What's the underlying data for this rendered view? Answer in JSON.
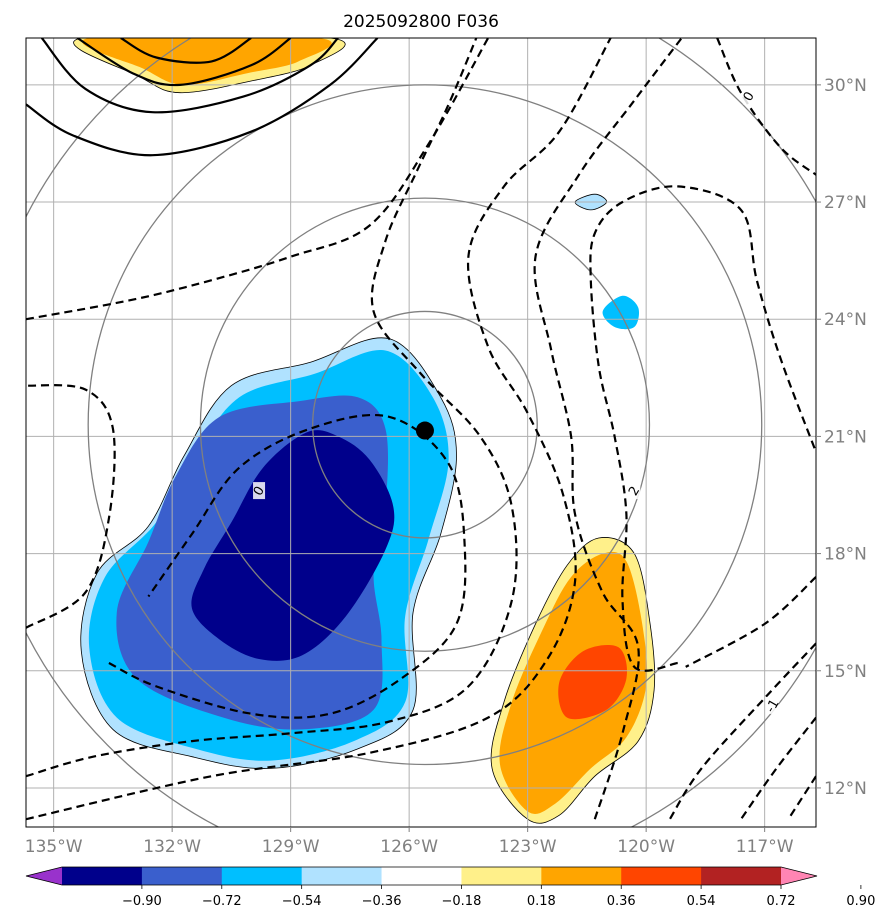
{
  "chart_data": {
    "type": "contour-map",
    "title": "2025092800 F036",
    "lon_range": [
      -135.7,
      -115.7
    ],
    "lat_range": [
      11.0,
      31.2
    ],
    "grid": true,
    "x_ticks": [
      {
        "value": -135,
        "label": "135°W"
      },
      {
        "value": -132,
        "label": "132°W"
      },
      {
        "value": -129,
        "label": "129°W"
      },
      {
        "value": -126,
        "label": "126°W"
      },
      {
        "value": -123,
        "label": "123°W"
      },
      {
        "value": -120,
        "label": "120°W"
      },
      {
        "value": -117,
        "label": "117°W"
      }
    ],
    "y_ticks": [
      {
        "value": 30,
        "label": "30°N"
      },
      {
        "value": 27,
        "label": "27°N"
      },
      {
        "value": 24,
        "label": "24°N"
      },
      {
        "value": 21,
        "label": "21°N"
      },
      {
        "value": 18,
        "label": "18°N"
      },
      {
        "value": 15,
        "label": "15°N"
      },
      {
        "value": 12,
        "label": "12°N"
      }
    ],
    "center_marker": {
      "lon": -125.6,
      "lat": 21.15
    },
    "range_rings": {
      "center_lon": -125.6,
      "center_lat": 21.3,
      "radii_deg": [
        2.9,
        5.8,
        8.7,
        11.6
      ]
    },
    "colorbar": {
      "ticks": [
        "−0.90",
        "−0.72",
        "−0.54",
        "−0.36",
        "−0.18",
        "0.18",
        "0.36",
        "0.54",
        "0.72",
        "0.90"
      ],
      "colors": [
        "#9932cc",
        "#00008b",
        "#3a5fcd",
        "#00bfff",
        "#b0e2ff",
        "#ffffff",
        "#fff08a",
        "#ffa500",
        "#ff4500",
        "#b22222",
        "#ff85b3"
      ],
      "extend": "both"
    },
    "filled_regions": [
      {
        "name": "west-low",
        "level_color": "#b0e2ff",
        "points": [
          [
            -133.5,
            13.5
          ],
          [
            -134.3,
            15.5
          ],
          [
            -133.9,
            17.5
          ],
          [
            -132.6,
            18.7
          ],
          [
            -131.7,
            20.5
          ],
          [
            -130.5,
            22.3
          ],
          [
            -128.5,
            22.9
          ],
          [
            -126.5,
            23.5
          ],
          [
            -125.2,
            22.0
          ],
          [
            -124.8,
            20.5
          ],
          [
            -125.2,
            18.5
          ],
          [
            -125.9,
            16.5
          ],
          [
            -125.9,
            14.0
          ],
          [
            -127.3,
            13.0
          ],
          [
            -129.5,
            12.5
          ],
          [
            -131.5,
            12.8
          ]
        ]
      },
      {
        "name": "west-low",
        "level_color": "#00bfff",
        "points": [
          [
            -133.4,
            13.8
          ],
          [
            -134.1,
            15.6
          ],
          [
            -133.7,
            17.4
          ],
          [
            -132.4,
            18.8
          ],
          [
            -131.5,
            20.4
          ],
          [
            -130.3,
            22.0
          ],
          [
            -128.4,
            22.6
          ],
          [
            -126.6,
            23.2
          ],
          [
            -125.4,
            22.0
          ],
          [
            -125.0,
            20.4
          ],
          [
            -125.5,
            18.4
          ],
          [
            -126.1,
            16.4
          ],
          [
            -126.1,
            14.2
          ],
          [
            -127.4,
            13.2
          ],
          [
            -129.5,
            12.7
          ],
          [
            -131.4,
            13.0
          ]
        ]
      },
      {
        "name": "west-low",
        "level_color": "#3a5fcd",
        "points": [
          [
            -132.9,
            14.8
          ],
          [
            -133.4,
            16.5
          ],
          [
            -132.6,
            18.3
          ],
          [
            -131.9,
            20.0
          ],
          [
            -130.8,
            21.5
          ],
          [
            -128.8,
            21.9
          ],
          [
            -127.3,
            22.0
          ],
          [
            -126.6,
            21.2
          ],
          [
            -126.6,
            19.2
          ],
          [
            -126.9,
            17.5
          ],
          [
            -126.7,
            15.8
          ],
          [
            -126.9,
            14.0
          ],
          [
            -128.7,
            13.5
          ],
          [
            -130.7,
            13.8
          ]
        ]
      },
      {
        "name": "west-low",
        "level_color": "#00008b",
        "points": [
          [
            -131.5,
            16.6
          ],
          [
            -131.2,
            17.6
          ],
          [
            -130.5,
            18.8
          ],
          [
            -129.7,
            20.2
          ],
          [
            -128.6,
            21.1
          ],
          [
            -127.8,
            21.0
          ],
          [
            -127.0,
            20.4
          ],
          [
            -126.4,
            19.2
          ],
          [
            -126.6,
            18.1
          ],
          [
            -127.6,
            16.4
          ],
          [
            -128.7,
            15.4
          ],
          [
            -129.8,
            15.3
          ],
          [
            -130.8,
            15.8
          ]
        ]
      },
      {
        "name": "northwest-high",
        "level_color": "#fff08a",
        "points": [
          [
            -134.3,
            31.2
          ],
          [
            -132.8,
            30.2
          ],
          [
            -131.8,
            29.8
          ],
          [
            -130.0,
            30.1
          ],
          [
            -128.5,
            30.5
          ],
          [
            -128.0,
            31.2
          ]
        ]
      },
      {
        "name": "northwest-high",
        "level_color": "#ffa500",
        "points": [
          [
            -134.1,
            31.2
          ],
          [
            -132.7,
            30.4
          ],
          [
            -131.7,
            30.0
          ],
          [
            -130.1,
            30.3
          ],
          [
            -128.8,
            30.6
          ],
          [
            -128.3,
            31.2
          ]
        ]
      },
      {
        "name": "southeast-high",
        "level_color": "#fff08a",
        "points": [
          [
            -123.0,
            11.2
          ],
          [
            -123.9,
            12.5
          ],
          [
            -123.6,
            14.2
          ],
          [
            -122.8,
            16.2
          ],
          [
            -122.0,
            17.7
          ],
          [
            -121.2,
            18.4
          ],
          [
            -120.3,
            18.0
          ],
          [
            -119.9,
            16.2
          ],
          [
            -119.8,
            14.5
          ],
          [
            -120.2,
            13.2
          ],
          [
            -121.3,
            12.3
          ],
          [
            -122.2,
            11.3
          ]
        ]
      },
      {
        "name": "southeast-high",
        "level_color": "#ffa500",
        "points": [
          [
            -123.0,
            11.4
          ],
          [
            -123.7,
            12.6
          ],
          [
            -123.4,
            14.2
          ],
          [
            -122.6,
            16.1
          ],
          [
            -121.9,
            17.4
          ],
          [
            -121.1,
            18.0
          ],
          [
            -120.5,
            17.8
          ],
          [
            -120.1,
            16.2
          ],
          [
            -120.0,
            14.6
          ],
          [
            -120.5,
            13.3
          ],
          [
            -121.4,
            12.5
          ],
          [
            -122.3,
            11.6
          ]
        ]
      },
      {
        "name": "southeast-core",
        "level_color": "#ff4500",
        "points": [
          [
            -122.0,
            13.8
          ],
          [
            -122.2,
            14.7
          ],
          [
            -121.6,
            15.5
          ],
          [
            -120.7,
            15.6
          ],
          [
            -120.5,
            14.8
          ],
          [
            -121.0,
            14.0
          ]
        ]
      },
      {
        "name": "small-low-24N",
        "level_color": "#00bfff",
        "points": [
          [
            -120.8,
            23.8
          ],
          [
            -121.1,
            24.2
          ],
          [
            -120.6,
            24.6
          ],
          [
            -120.2,
            24.3
          ],
          [
            -120.3,
            23.8
          ]
        ]
      },
      {
        "name": "small-low-27N",
        "level_color": "#b0e2ff",
        "points": [
          [
            -121.8,
            27.0
          ],
          [
            -121.3,
            27.2
          ],
          [
            -121.0,
            27.0
          ],
          [
            -121.4,
            26.8
          ]
        ]
      }
    ],
    "solid_contours": [
      {
        "name": "north-ridge-1",
        "points": [
          [
            -135.7,
            29.5
          ],
          [
            -134.5,
            28.7
          ],
          [
            -132.5,
            28.2
          ],
          [
            -130.0,
            28.8
          ],
          [
            -128.0,
            30.0
          ],
          [
            -126.8,
            31.2
          ]
        ]
      },
      {
        "name": "north-ridge-2",
        "points": [
          [
            -135.3,
            31.2
          ],
          [
            -134.2,
            29.9
          ],
          [
            -132.5,
            29.3
          ],
          [
            -130.2,
            29.7
          ],
          [
            -128.5,
            30.5
          ],
          [
            -127.8,
            31.2
          ]
        ]
      },
      {
        "name": "north-ridge-3",
        "points": [
          [
            -134.4,
            31.2
          ],
          [
            -133.0,
            30.3
          ],
          [
            -131.8,
            30.0
          ],
          [
            -130.0,
            30.5
          ],
          [
            -129.0,
            31.2
          ]
        ]
      },
      {
        "name": "north-ridge-4",
        "points": [
          [
            -133.3,
            31.2
          ],
          [
            -132.4,
            30.7
          ],
          [
            -131.0,
            30.6
          ],
          [
            -130.0,
            31.2
          ]
        ]
      }
    ],
    "dashed_contours": [
      {
        "name": "dash-a",
        "points": [
          [
            -135.7,
            16.1
          ],
          [
            -134.2,
            17.0
          ],
          [
            -133.6,
            18.9
          ],
          [
            -133.5,
            21.2
          ],
          [
            -134.2,
            22.2
          ],
          [
            -135.7,
            22.3
          ]
        ]
      },
      {
        "name": "dash-b",
        "points": [
          [
            -133.6,
            15.2
          ],
          [
            -132.4,
            14.6
          ],
          [
            -130.0,
            13.9
          ],
          [
            -128.0,
            13.9
          ],
          [
            -126.2,
            14.8
          ],
          [
            -124.8,
            16.2
          ],
          [
            -124.6,
            18.3
          ],
          [
            -125.0,
            20.3
          ],
          [
            -126.5,
            21.5
          ],
          [
            -128.5,
            21.2
          ],
          [
            -130.3,
            20.2
          ],
          [
            -131.5,
            18.5
          ],
          [
            -132.6,
            16.9
          ]
        ]
      },
      {
        "name": "dash-c",
        "points": [
          [
            -135.7,
            12.3
          ],
          [
            -134.0,
            12.8
          ],
          [
            -131.5,
            13.2
          ],
          [
            -129.0,
            13.4
          ],
          [
            -126.5,
            13.7
          ],
          [
            -124.5,
            14.6
          ],
          [
            -123.4,
            16.8
          ],
          [
            -123.4,
            19.2
          ],
          [
            -124.2,
            21.0
          ],
          [
            -125.7,
            22.6
          ],
          [
            -126.9,
            24.2
          ],
          [
            -126.6,
            26.0
          ],
          [
            -125.8,
            27.8
          ],
          [
            -125.0,
            29.5
          ],
          [
            -124.3,
            31.2
          ]
        ]
      },
      {
        "name": "dash-d",
        "points": [
          [
            -135.7,
            24.0
          ],
          [
            -133.0,
            24.5
          ],
          [
            -131.0,
            25.0
          ],
          [
            -129.0,
            25.6
          ],
          [
            -127.0,
            26.4
          ],
          [
            -125.5,
            28.5
          ],
          [
            -124.0,
            31.2
          ]
        ]
      },
      {
        "name": "dash-e",
        "points": [
          [
            -135.7,
            11.2
          ],
          [
            -131.0,
            12.3
          ],
          [
            -127.0,
            12.9
          ],
          [
            -124.0,
            13.8
          ],
          [
            -122.5,
            15.3
          ],
          [
            -121.8,
            17.3
          ],
          [
            -122.1,
            19.5
          ],
          [
            -123.0,
            21.6
          ],
          [
            -124.0,
            23.3
          ],
          [
            -124.5,
            25.6
          ],
          [
            -123.6,
            27.4
          ],
          [
            -122.2,
            28.8
          ],
          [
            -120.9,
            31.2
          ]
        ]
      },
      {
        "name": "dash-f",
        "points": [
          [
            -121.3,
            11.2
          ],
          [
            -120.6,
            13.4
          ],
          [
            -120.2,
            15.6
          ],
          [
            -121.1,
            17.0
          ],
          [
            -121.8,
            19.0
          ],
          [
            -121.9,
            21.0
          ],
          [
            -122.4,
            23.2
          ],
          [
            -122.8,
            25.6
          ],
          [
            -121.7,
            27.7
          ],
          [
            -120.3,
            29.6
          ],
          [
            -119.1,
            31.2
          ]
        ]
      },
      {
        "name": "dash-g",
        "points": [
          [
            -119.2,
            15.2
          ],
          [
            -120.3,
            15.1
          ],
          [
            -120.6,
            16.8
          ],
          [
            -120.5,
            19.0
          ],
          [
            -120.8,
            21.0
          ],
          [
            -121.2,
            22.8
          ],
          [
            -121.4,
            25.0
          ],
          [
            -121.3,
            26.2
          ],
          [
            -120.6,
            27.0
          ],
          [
            -119.2,
            27.4
          ],
          [
            -117.6,
            26.8
          ],
          [
            -117.2,
            25.0
          ],
          [
            -116.6,
            23.0
          ],
          [
            -115.7,
            20.6
          ]
        ]
      },
      {
        "name": "dash-h",
        "points": [
          [
            -115.7,
            17.4
          ],
          [
            -117.0,
            16.2
          ],
          [
            -119.0,
            15.1
          ]
        ]
      },
      {
        "name": "dash-i",
        "points": [
          [
            -115.7,
            15.7
          ],
          [
            -117.0,
            14.3
          ],
          [
            -118.6,
            12.5
          ],
          [
            -119.4,
            11.2
          ]
        ]
      },
      {
        "name": "dash-j",
        "points": [
          [
            -115.7,
            13.8
          ],
          [
            -116.7,
            12.5
          ],
          [
            -117.6,
            11.2
          ]
        ]
      },
      {
        "name": "dash-k",
        "points": [
          [
            -115.7,
            12.3
          ],
          [
            -116.4,
            11.2
          ]
        ]
      },
      {
        "name": "dash-l",
        "points": [
          [
            -118.2,
            31.2
          ],
          [
            -117.6,
            29.8
          ],
          [
            -116.6,
            28.4
          ],
          [
            -115.7,
            27.7
          ]
        ]
      }
    ],
    "contour_labels": [
      {
        "text": "0",
        "lon": -129.8,
        "lat": 19.6
      },
      {
        "text": "2",
        "lon": -120.3,
        "lat": 19.6
      },
      {
        "text": "-1",
        "lon": -116.8,
        "lat": 14.1
      },
      {
        "text": "0",
        "lon": -117.4,
        "lat": 29.7
      }
    ]
  }
}
